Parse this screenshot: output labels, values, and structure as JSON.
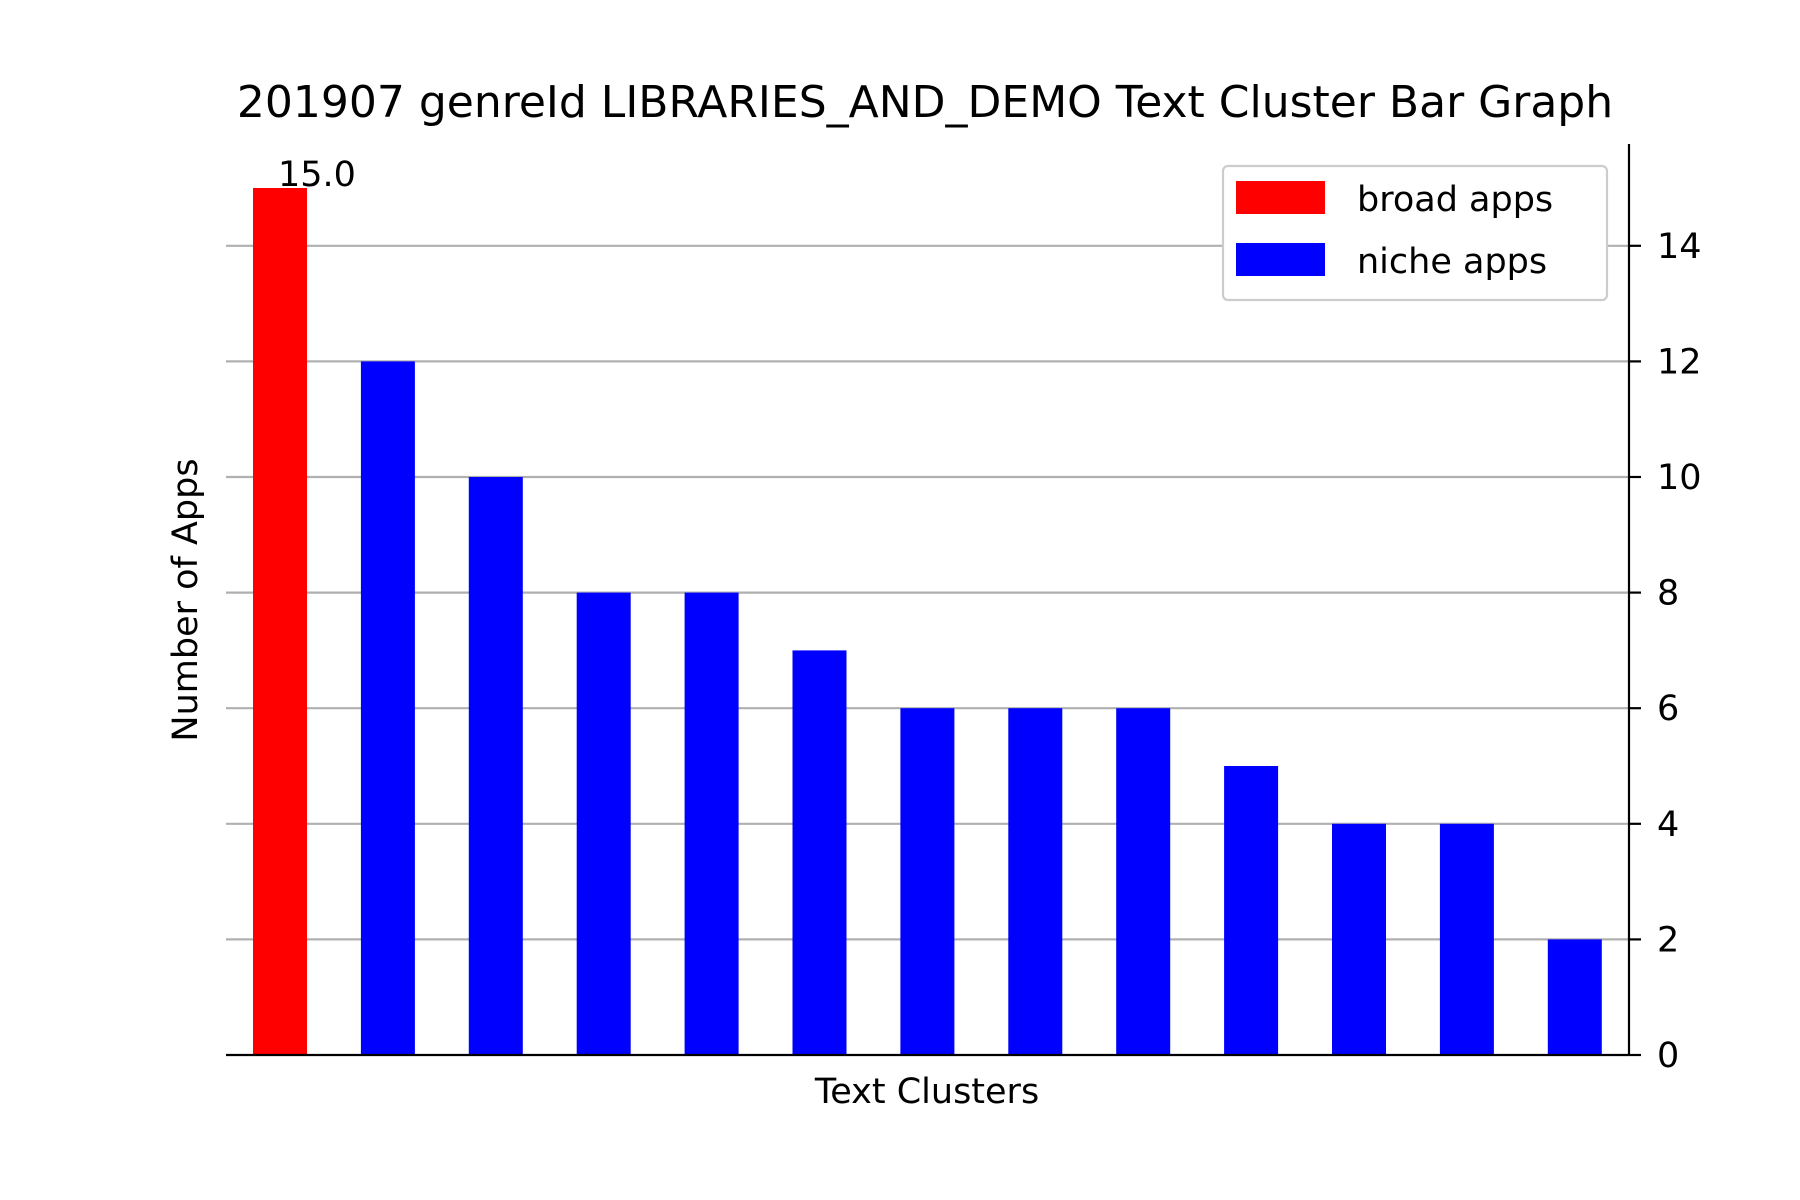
{
  "chart_data": {
    "type": "bar",
    "title": "201907 genreId LIBRARIES_AND_DEMO Text Cluster Bar Graph",
    "xlabel": "Text Clusters",
    "ylabel": "Number of Apps",
    "ylim": [
      0,
      15.75
    ],
    "yticks": [
      "0",
      "2",
      "4",
      "6",
      "8",
      "10",
      "12",
      "14"
    ],
    "grid": true,
    "legend_position": "top-right",
    "series": [
      {
        "name": "broad apps",
        "color": "#ff0000",
        "indices": [
          0
        ]
      },
      {
        "name": "niche apps",
        "color": "#0000ff",
        "indices": [
          1,
          2,
          3,
          4,
          5,
          6,
          7,
          8,
          9,
          10,
          11,
          12
        ]
      }
    ],
    "values": [
      15,
      12,
      10,
      8,
      8,
      7,
      6,
      6,
      6,
      5,
      4,
      4,
      2
    ],
    "data_label": {
      "index": 0,
      "text": "15.0"
    }
  }
}
